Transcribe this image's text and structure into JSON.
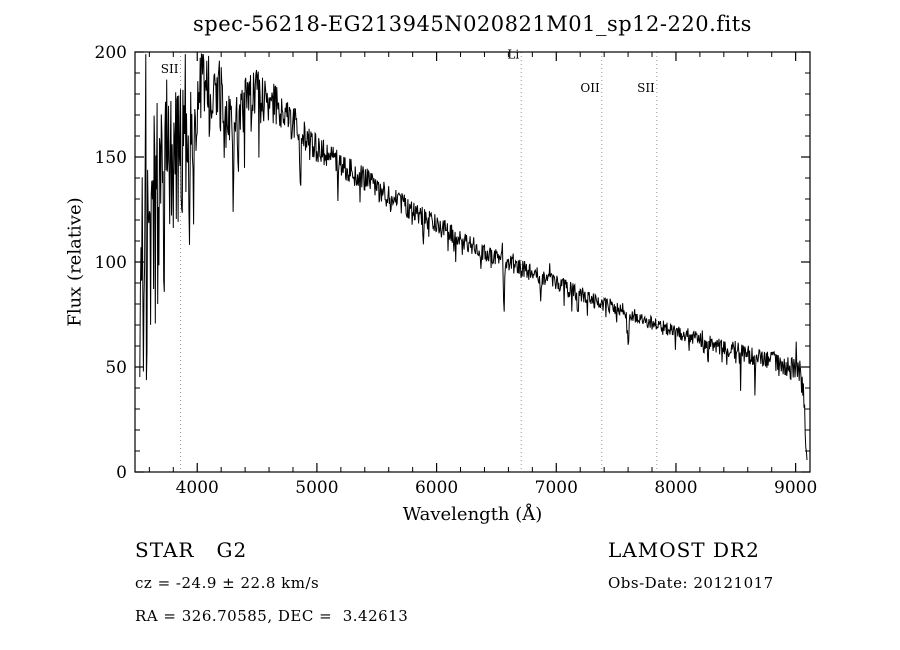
{
  "title": "spec-56218-EG213945N020821M01_sp12-220.fits",
  "chart_data": {
    "type": "line",
    "title": "spec-56218-EG213945N020821M01_sp12-220.fits",
    "xlabel": "Wavelength (Å)",
    "ylabel": "Flux (relative)",
    "xlim": [
      3480,
      9120
    ],
    "ylim": [
      0,
      200
    ],
    "x_ticks": [
      4000,
      5000,
      6000,
      7000,
      8000,
      9000
    ],
    "y_ticks": [
      0,
      50,
      100,
      150,
      200
    ],
    "x_minor_step": 200,
    "y_minor_step": 10,
    "grid": false,
    "legend": "none",
    "line_color": "#000000",
    "marker_line_color": "#999999",
    "marker_lines": [
      {
        "label": "SII",
        "wavelength": 3860,
        "label_flux": 190
      },
      {
        "label": "Li",
        "wavelength": 6707,
        "label_flux": 197
      },
      {
        "label": "OII",
        "wavelength": 7380,
        "label_flux": 181
      },
      {
        "label": "SII",
        "wavelength": 7840,
        "label_flux": 181
      }
    ],
    "spectrum": {
      "sample_step": 5,
      "range": [
        3520,
        9095
      ],
      "noise_seed": 77,
      "continuum": [
        [
          3520,
          80
        ],
        [
          3580,
          110
        ],
        [
          3640,
          125
        ],
        [
          3700,
          135
        ],
        [
          3760,
          148
        ],
        [
          3820,
          156
        ],
        [
          3880,
          158
        ],
        [
          3940,
          168
        ],
        [
          4000,
          178
        ],
        [
          4060,
          186
        ],
        [
          4120,
          180
        ],
        [
          4180,
          183
        ],
        [
          4240,
          172
        ],
        [
          4300,
          163
        ],
        [
          4360,
          174
        ],
        [
          4420,
          178
        ],
        [
          4500,
          181
        ],
        [
          4600,
          178
        ],
        [
          4700,
          172
        ],
        [
          4800,
          166
        ],
        [
          4900,
          160
        ],
        [
          5000,
          154
        ],
        [
          5100,
          150
        ],
        [
          5200,
          147
        ],
        [
          5300,
          143
        ],
        [
          5400,
          139
        ],
        [
          5500,
          135
        ],
        [
          5600,
          131
        ],
        [
          5700,
          128
        ],
        [
          5800,
          124
        ],
        [
          5900,
          121
        ],
        [
          6000,
          118
        ],
        [
          6100,
          114
        ],
        [
          6200,
          111
        ],
        [
          6300,
          108
        ],
        [
          6400,
          105
        ],
        [
          6500,
          102
        ],
        [
          6600,
          100
        ],
        [
          6700,
          97
        ],
        [
          6800,
          95
        ],
        [
          6900,
          92
        ],
        [
          7000,
          90
        ],
        [
          7100,
          87
        ],
        [
          7200,
          85
        ],
        [
          7300,
          82
        ],
        [
          7400,
          80
        ],
        [
          7500,
          78
        ],
        [
          7600,
          76
        ],
        [
          7700,
          73
        ],
        [
          7800,
          71
        ],
        [
          7900,
          69
        ],
        [
          8000,
          67
        ],
        [
          8100,
          65
        ],
        [
          8200,
          63
        ],
        [
          8300,
          61
        ],
        [
          8400,
          59
        ],
        [
          8500,
          58
        ],
        [
          8600,
          56
        ],
        [
          8700,
          54
        ],
        [
          8800,
          53
        ],
        [
          8900,
          51
        ],
        [
          9000,
          49
        ],
        [
          9040,
          47
        ],
        [
          9070,
          35
        ],
        [
          9095,
          3
        ]
      ],
      "noise_profile": [
        [
          3520,
          55
        ],
        [
          3640,
          50
        ],
        [
          3760,
          42
        ],
        [
          3860,
          30
        ],
        [
          3960,
          20
        ],
        [
          4080,
          16
        ],
        [
          4250,
          13
        ],
        [
          4450,
          11
        ],
        [
          4700,
          9
        ],
        [
          5000,
          7
        ],
        [
          5400,
          6
        ],
        [
          5900,
          5
        ],
        [
          6400,
          4.5
        ],
        [
          7000,
          4
        ],
        [
          7600,
          3.5
        ],
        [
          8200,
          3.5
        ],
        [
          8700,
          4.5
        ],
        [
          9050,
          6
        ]
      ],
      "spike_chance": 0.06,
      "spike_gain": 2.6,
      "absorption_lines": [
        [
          3933,
          55,
          7
        ],
        [
          3968,
          48,
          7
        ],
        [
          4101,
          38,
          5
        ],
        [
          4227,
          18,
          4
        ],
        [
          4300,
          24,
          8
        ],
        [
          4340,
          34,
          5
        ],
        [
          4383,
          20,
          4
        ],
        [
          4455,
          14,
          4
        ],
        [
          4861,
          36,
          5
        ],
        [
          5175,
          14,
          6
        ],
        [
          5890,
          13,
          5
        ],
        [
          6563,
          28,
          5
        ],
        [
          6870,
          13,
          7
        ],
        [
          7180,
          8,
          8
        ],
        [
          7600,
          14,
          9
        ],
        [
          8230,
          8,
          7
        ],
        [
          8500,
          9,
          5
        ],
        [
          8540,
          8,
          5
        ],
        [
          8660,
          10,
          5
        ]
      ]
    }
  },
  "footer": {
    "class_label": "STAR   G2",
    "survey": "LAMOST DR2",
    "cz": "cz = -24.9 ± 22.8 km/s",
    "obs_date": "Obs-Date: 20121017",
    "coords": "RA = 326.70585, DEC =  3.42613"
  }
}
